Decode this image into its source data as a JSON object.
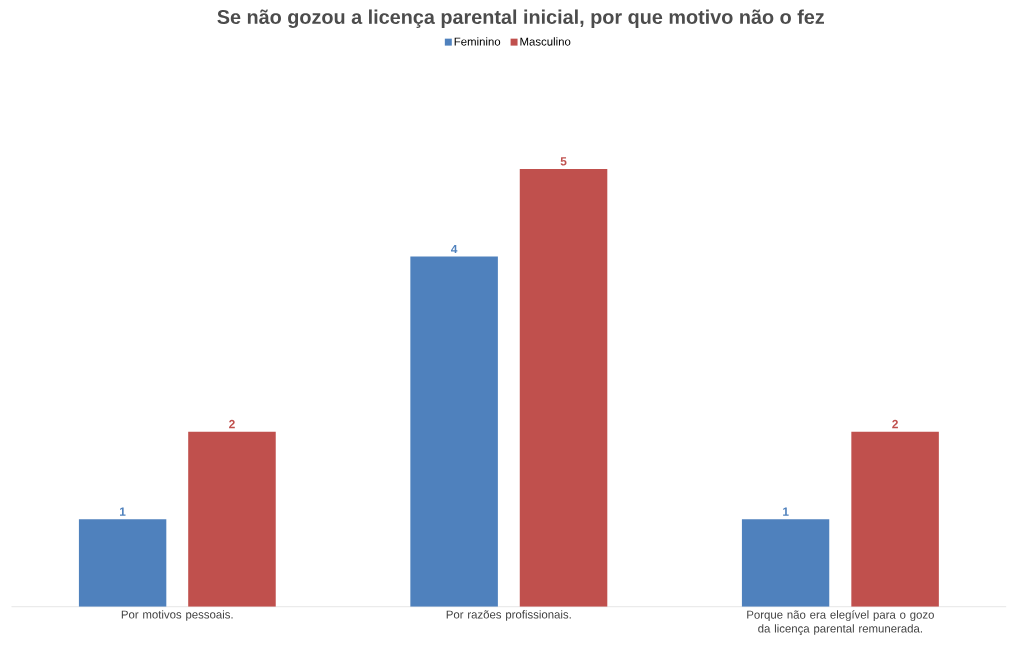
{
  "chart_data": {
    "type": "bar",
    "title": "Se não gozou a licença parental inicial, por que motivo não o fez",
    "categories": [
      "Por motivos pessoais.",
      "Por razões profissionais.",
      "Porque não era elegível para o gozo da licença parental remunerada."
    ],
    "series": [
      {
        "name": "Feminino",
        "color": "#4f81bd",
        "values": [
          1,
          4,
          1
        ]
      },
      {
        "name": "Masculino",
        "color": "#c0504d",
        "values": [
          2,
          5,
          2
        ]
      }
    ],
    "data_labels": true,
    "legend": "top"
  }
}
